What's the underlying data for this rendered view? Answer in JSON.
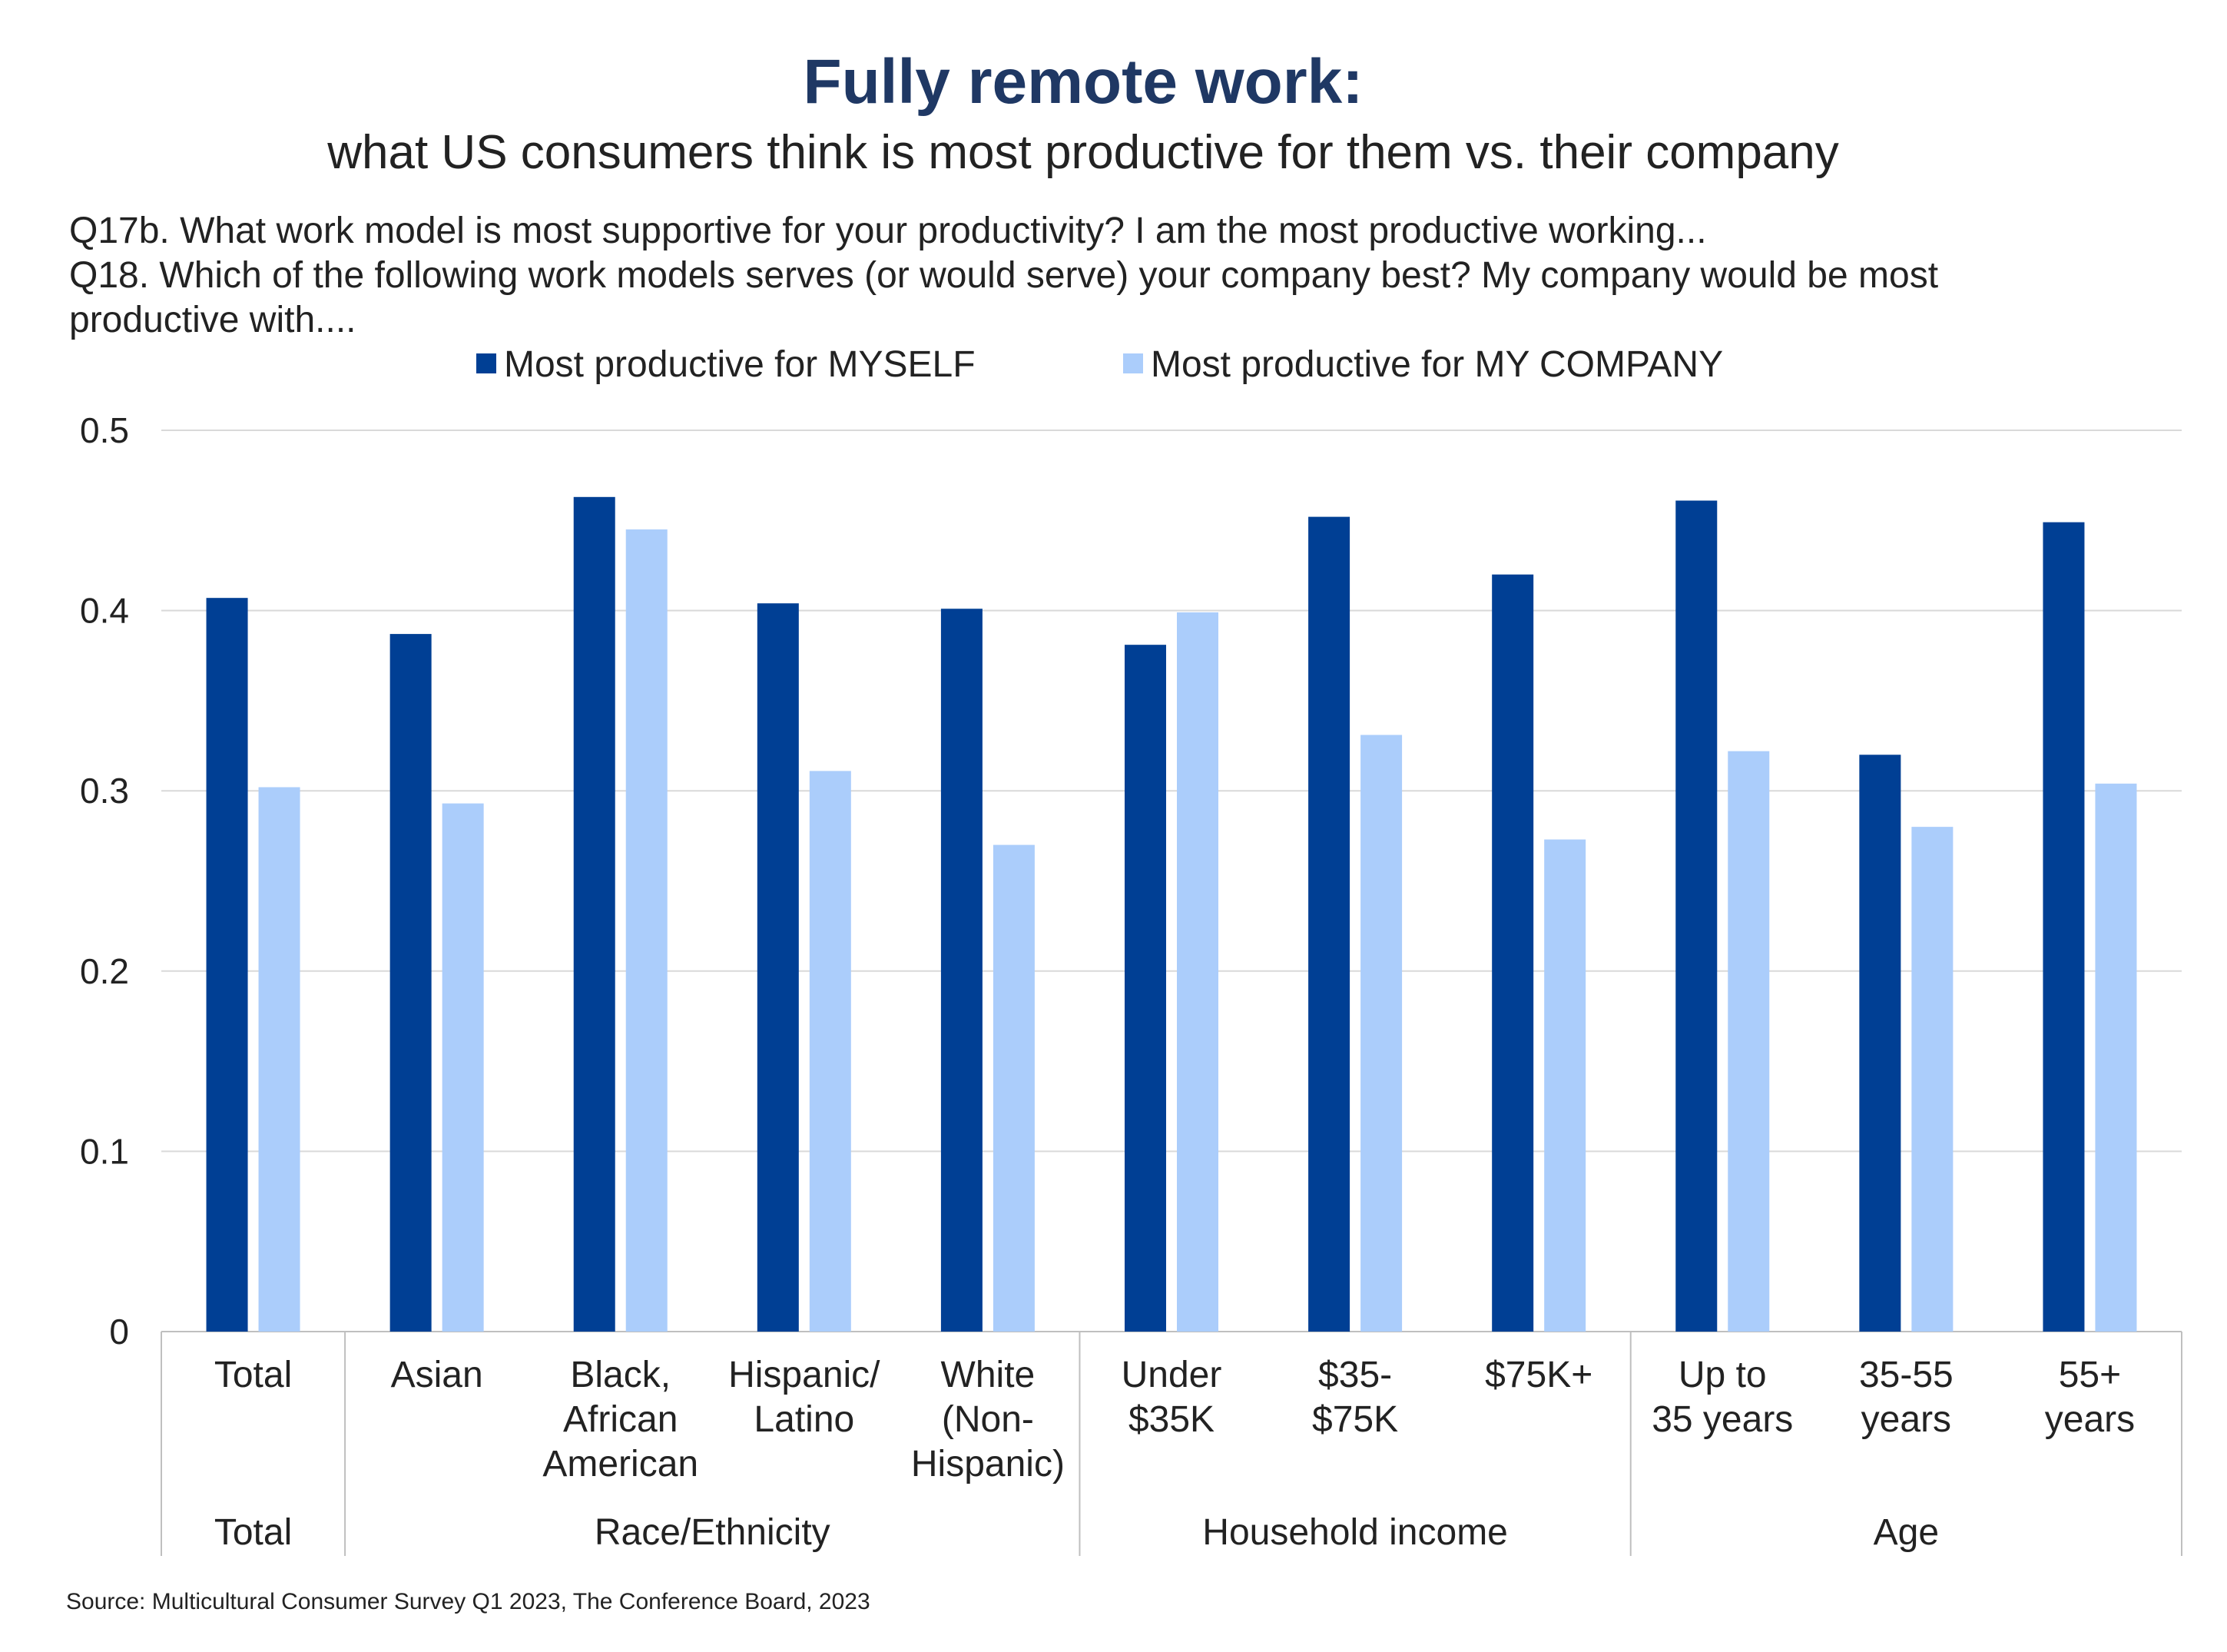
{
  "title": "Fully remote work:",
  "subtitle": "what US consumers think is most productive for them vs. their company",
  "questions": [
    "Q17b. What work model is most supportive for your productivity? I am the most productive working...",
    "Q18. Which of the following work models serves (or would serve) your company best? My company would be most",
    "productive with...."
  ],
  "source": "Source: Multicultural Consumer Survey Q1 2023, The Conference Board, 2023",
  "colors": {
    "myself": "#003f94",
    "company": "#abcdfb",
    "grid": "#d9d9d9",
    "axis": "#bfbfbf"
  },
  "chart_data": {
    "type": "bar",
    "ylim": [
      0,
      0.5
    ],
    "yticks": [
      {
        "v": 0,
        "label": "0"
      },
      {
        "v": 0.1,
        "label": "0.1"
      },
      {
        "v": 0.2,
        "label": "0.2"
      },
      {
        "v": 0.3,
        "label": "0.3"
      },
      {
        "v": 0.4,
        "label": "0.4"
      },
      {
        "v": 0.5,
        "label": "0.5"
      }
    ],
    "grid": true,
    "legend_position": "top-center",
    "categories": [
      [
        "Total"
      ],
      [
        "Asian"
      ],
      [
        "Black,",
        "African",
        "American"
      ],
      [
        "Hispanic/",
        "Latino"
      ],
      [
        "White",
        "(Non-",
        "Hispanic)"
      ],
      [
        "Under",
        "$35K"
      ],
      [
        "$35-",
        "$75K"
      ],
      [
        "$75K+"
      ],
      [
        "Up to",
        "35 years"
      ],
      [
        "35-55",
        "years"
      ],
      [
        "55+",
        "years"
      ]
    ],
    "groups": [
      {
        "label": "Total",
        "start": 0,
        "count": 1
      },
      {
        "label": "Race/Ethnicity",
        "start": 1,
        "count": 4
      },
      {
        "label": "Household income",
        "start": 5,
        "count": 3
      },
      {
        "label": "Age",
        "start": 8,
        "count": 3
      }
    ],
    "series": [
      {
        "name": "Most productive for MYSELF",
        "values": [
          0.407,
          0.387,
          0.463,
          0.404,
          0.401,
          0.381,
          0.452,
          0.42,
          0.461,
          0.32,
          0.449
        ]
      },
      {
        "name": "Most productive for MY COMPANY",
        "values": [
          0.302,
          0.293,
          0.445,
          0.311,
          0.27,
          0.399,
          0.331,
          0.273,
          0.322,
          0.28,
          0.304
        ]
      }
    ]
  }
}
